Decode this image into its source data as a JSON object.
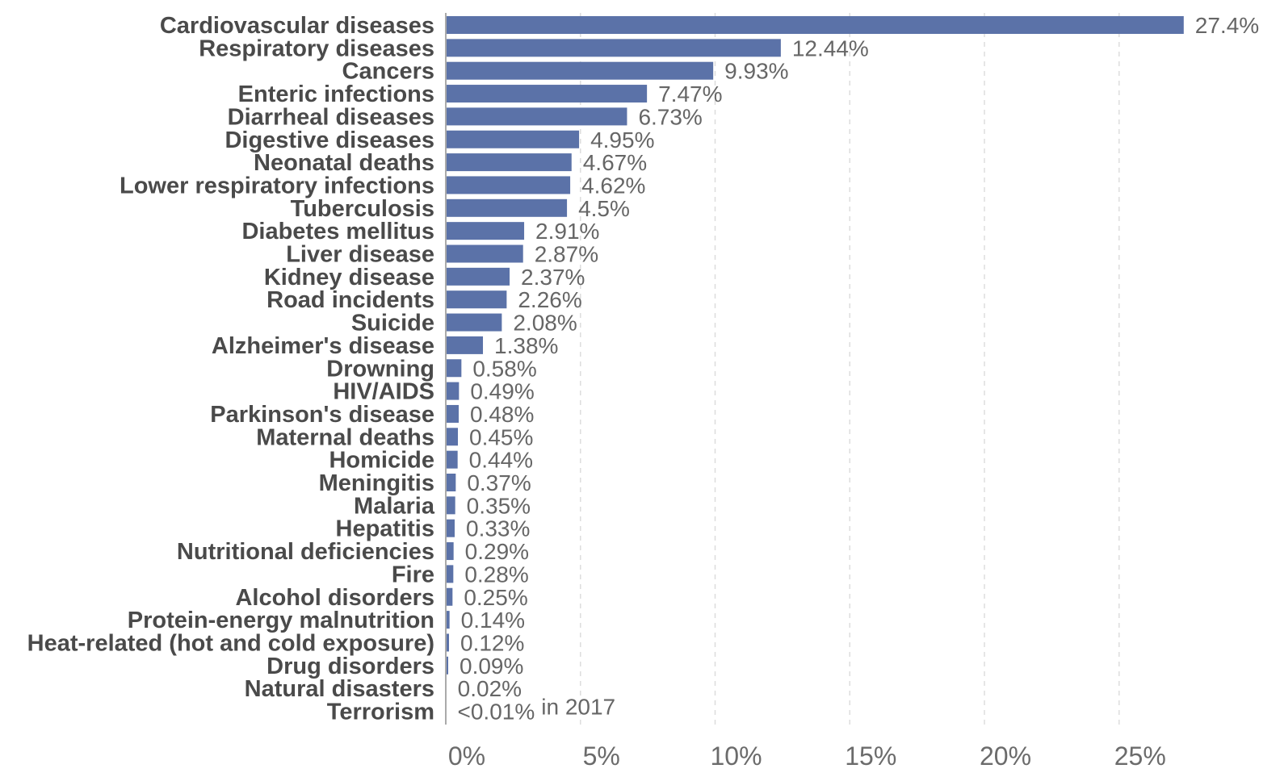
{
  "chart_data": {
    "type": "bar",
    "orientation": "horizontal",
    "categories": [
      "Cardiovascular diseases",
      "Respiratory diseases",
      "Cancers",
      "Enteric infections",
      "Diarrheal diseases",
      "Digestive diseases",
      "Neonatal deaths",
      "Lower respiratory infections",
      "Tuberculosis",
      "Diabetes mellitus",
      "Liver disease",
      "Kidney disease",
      "Road incidents",
      "Suicide",
      "Alzheimer's disease",
      "Drowning",
      "HIV/AIDS",
      "Parkinson's disease",
      "Maternal deaths",
      "Homicide",
      "Meningitis",
      "Malaria",
      "Hepatitis",
      "Nutritional deficiencies",
      "Fire",
      "Alcohol disorders",
      "Protein-energy malnutrition",
      "Heat-related (hot and cold exposure)",
      "Drug disorders",
      "Natural disasters",
      "Terrorism"
    ],
    "values": [
      27.4,
      12.44,
      9.93,
      7.47,
      6.73,
      4.95,
      4.67,
      4.62,
      4.5,
      2.91,
      2.87,
      2.37,
      2.26,
      2.08,
      1.38,
      0.58,
      0.49,
      0.48,
      0.45,
      0.44,
      0.37,
      0.35,
      0.33,
      0.29,
      0.28,
      0.25,
      0.14,
      0.12,
      0.09,
      0.02,
      0.005
    ],
    "value_labels": [
      "27.4%",
      "12.44%",
      "9.93%",
      "7.47%",
      "6.73%",
      "4.95%",
      "4.67%",
      "4.62%",
      "4.5%",
      "2.91%",
      "2.87%",
      "2.37%",
      "2.26%",
      "2.08%",
      "1.38%",
      "0.58%",
      "0.49%",
      "0.48%",
      "0.45%",
      "0.44%",
      "0.37%",
      "0.35%",
      "0.33%",
      "0.29%",
      "0.28%",
      "0.25%",
      "0.14%",
      "0.12%",
      "0.09%",
      "0.02%",
      "<0.01%"
    ],
    "annotation": "in 2017",
    "x_ticks": [
      "0%",
      "5%",
      "10%",
      "15%",
      "20%",
      "25%"
    ],
    "x_tick_values": [
      0,
      5,
      10,
      15,
      20,
      25
    ],
    "xlim": [
      0,
      27.4
    ],
    "title": "",
    "xlabel": "",
    "ylabel": "",
    "grid": true,
    "bar_color": "#5b72a8"
  }
}
